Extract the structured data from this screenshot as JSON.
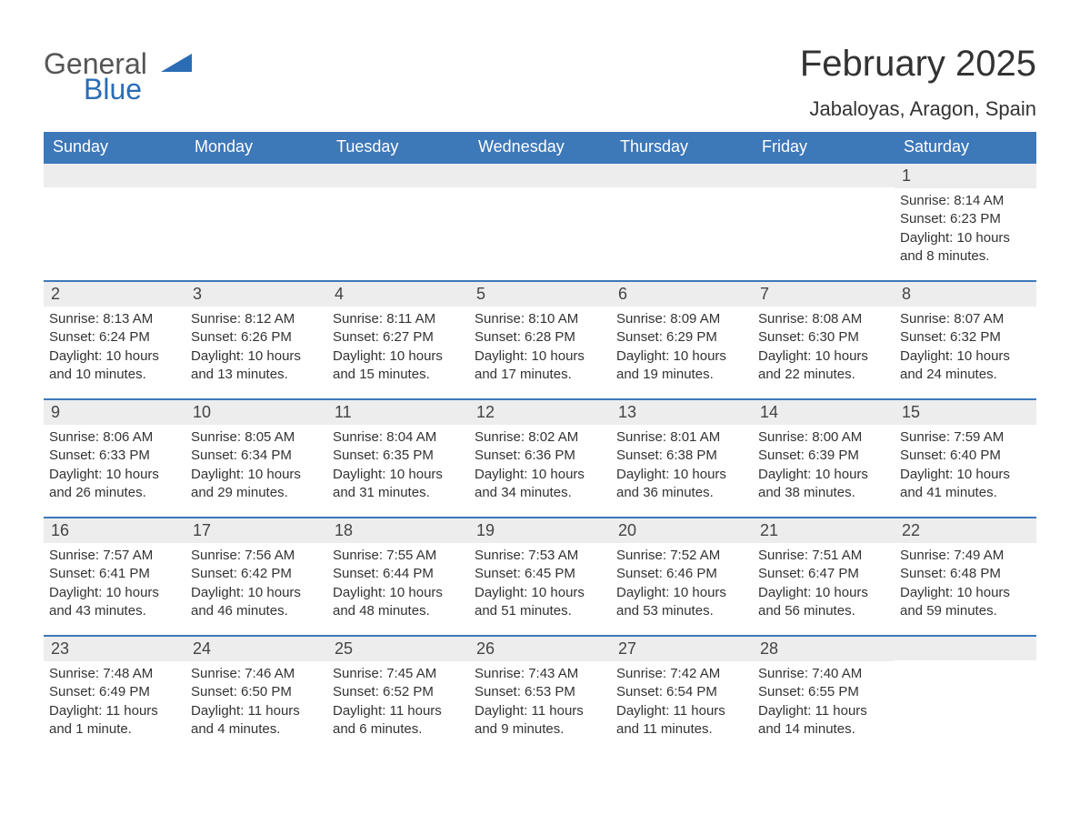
{
  "logo": {
    "word1": "General",
    "word2": "Blue",
    "tri_color": "#2a6db5"
  },
  "header": {
    "title": "February 2025",
    "location": "Jabaloyas, Aragon, Spain"
  },
  "style": {
    "header_bg": "#3d78b9",
    "header_text": "#ffffff",
    "row_border": "#3d78b9",
    "daynum_bg": "#ededed",
    "body_bg": "#ffffff",
    "text_color": "#333333",
    "title_fontsize": 40,
    "location_fontsize": 22,
    "header_fontsize": 18,
    "daynum_fontsize": 18,
    "body_fontsize": 15
  },
  "weekdays": [
    "Sunday",
    "Monday",
    "Tuesday",
    "Wednesday",
    "Thursday",
    "Friday",
    "Saturday"
  ],
  "weeks": [
    [
      null,
      null,
      null,
      null,
      null,
      null,
      {
        "d": "1",
        "sr": "Sunrise: 8:14 AM",
        "ss": "Sunset: 6:23 PM",
        "dl": "Daylight: 10 hours and 8 minutes."
      }
    ],
    [
      {
        "d": "2",
        "sr": "Sunrise: 8:13 AM",
        "ss": "Sunset: 6:24 PM",
        "dl": "Daylight: 10 hours and 10 minutes."
      },
      {
        "d": "3",
        "sr": "Sunrise: 8:12 AM",
        "ss": "Sunset: 6:26 PM",
        "dl": "Daylight: 10 hours and 13 minutes."
      },
      {
        "d": "4",
        "sr": "Sunrise: 8:11 AM",
        "ss": "Sunset: 6:27 PM",
        "dl": "Daylight: 10 hours and 15 minutes."
      },
      {
        "d": "5",
        "sr": "Sunrise: 8:10 AM",
        "ss": "Sunset: 6:28 PM",
        "dl": "Daylight: 10 hours and 17 minutes."
      },
      {
        "d": "6",
        "sr": "Sunrise: 8:09 AM",
        "ss": "Sunset: 6:29 PM",
        "dl": "Daylight: 10 hours and 19 minutes."
      },
      {
        "d": "7",
        "sr": "Sunrise: 8:08 AM",
        "ss": "Sunset: 6:30 PM",
        "dl": "Daylight: 10 hours and 22 minutes."
      },
      {
        "d": "8",
        "sr": "Sunrise: 8:07 AM",
        "ss": "Sunset: 6:32 PM",
        "dl": "Daylight: 10 hours and 24 minutes."
      }
    ],
    [
      {
        "d": "9",
        "sr": "Sunrise: 8:06 AM",
        "ss": "Sunset: 6:33 PM",
        "dl": "Daylight: 10 hours and 26 minutes."
      },
      {
        "d": "10",
        "sr": "Sunrise: 8:05 AM",
        "ss": "Sunset: 6:34 PM",
        "dl": "Daylight: 10 hours and 29 minutes."
      },
      {
        "d": "11",
        "sr": "Sunrise: 8:04 AM",
        "ss": "Sunset: 6:35 PM",
        "dl": "Daylight: 10 hours and 31 minutes."
      },
      {
        "d": "12",
        "sr": "Sunrise: 8:02 AM",
        "ss": "Sunset: 6:36 PM",
        "dl": "Daylight: 10 hours and 34 minutes."
      },
      {
        "d": "13",
        "sr": "Sunrise: 8:01 AM",
        "ss": "Sunset: 6:38 PM",
        "dl": "Daylight: 10 hours and 36 minutes."
      },
      {
        "d": "14",
        "sr": "Sunrise: 8:00 AM",
        "ss": "Sunset: 6:39 PM",
        "dl": "Daylight: 10 hours and 38 minutes."
      },
      {
        "d": "15",
        "sr": "Sunrise: 7:59 AM",
        "ss": "Sunset: 6:40 PM",
        "dl": "Daylight: 10 hours and 41 minutes."
      }
    ],
    [
      {
        "d": "16",
        "sr": "Sunrise: 7:57 AM",
        "ss": "Sunset: 6:41 PM",
        "dl": "Daylight: 10 hours and 43 minutes."
      },
      {
        "d": "17",
        "sr": "Sunrise: 7:56 AM",
        "ss": "Sunset: 6:42 PM",
        "dl": "Daylight: 10 hours and 46 minutes."
      },
      {
        "d": "18",
        "sr": "Sunrise: 7:55 AM",
        "ss": "Sunset: 6:44 PM",
        "dl": "Daylight: 10 hours and 48 minutes."
      },
      {
        "d": "19",
        "sr": "Sunrise: 7:53 AM",
        "ss": "Sunset: 6:45 PM",
        "dl": "Daylight: 10 hours and 51 minutes."
      },
      {
        "d": "20",
        "sr": "Sunrise: 7:52 AM",
        "ss": "Sunset: 6:46 PM",
        "dl": "Daylight: 10 hours and 53 minutes."
      },
      {
        "d": "21",
        "sr": "Sunrise: 7:51 AM",
        "ss": "Sunset: 6:47 PM",
        "dl": "Daylight: 10 hours and 56 minutes."
      },
      {
        "d": "22",
        "sr": "Sunrise: 7:49 AM",
        "ss": "Sunset: 6:48 PM",
        "dl": "Daylight: 10 hours and 59 minutes."
      }
    ],
    [
      {
        "d": "23",
        "sr": "Sunrise: 7:48 AM",
        "ss": "Sunset: 6:49 PM",
        "dl": "Daylight: 11 hours and 1 minute."
      },
      {
        "d": "24",
        "sr": "Sunrise: 7:46 AM",
        "ss": "Sunset: 6:50 PM",
        "dl": "Daylight: 11 hours and 4 minutes."
      },
      {
        "d": "25",
        "sr": "Sunrise: 7:45 AM",
        "ss": "Sunset: 6:52 PM",
        "dl": "Daylight: 11 hours and 6 minutes."
      },
      {
        "d": "26",
        "sr": "Sunrise: 7:43 AM",
        "ss": "Sunset: 6:53 PM",
        "dl": "Daylight: 11 hours and 9 minutes."
      },
      {
        "d": "27",
        "sr": "Sunrise: 7:42 AM",
        "ss": "Sunset: 6:54 PM",
        "dl": "Daylight: 11 hours and 11 minutes."
      },
      {
        "d": "28",
        "sr": "Sunrise: 7:40 AM",
        "ss": "Sunset: 6:55 PM",
        "dl": "Daylight: 11 hours and 14 minutes."
      },
      null
    ]
  ]
}
